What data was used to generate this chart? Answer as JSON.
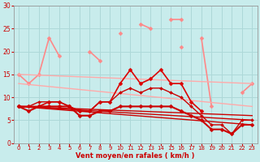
{
  "background_color": "#c8ecec",
  "grid_color": "#add8d8",
  "xlabel": "Vent moyen/en rafales ( km/h )",
  "xlabel_color": "#cc0000",
  "tick_color": "#cc0000",
  "xlim": [
    -0.5,
    23.5
  ],
  "ylim": [
    0,
    30
  ],
  "yticks": [
    0,
    5,
    10,
    15,
    20,
    25,
    30
  ],
  "xticks": [
    0,
    1,
    2,
    3,
    4,
    5,
    6,
    7,
    8,
    9,
    10,
    11,
    12,
    13,
    14,
    15,
    16,
    17,
    18,
    19,
    20,
    21,
    22,
    23
  ],
  "lines": [
    {
      "x": [
        0,
        1,
        2,
        3,
        4,
        5,
        6,
        7,
        8,
        9,
        10,
        11,
        12,
        13,
        14,
        15,
        16,
        17,
        18,
        19,
        20,
        21,
        22,
        23
      ],
      "y": [
        null,
        null,
        null,
        null,
        null,
        null,
        null,
        null,
        null,
        null,
        24,
        null,
        26,
        25,
        null,
        27,
        27,
        null,
        null,
        null,
        null,
        null,
        11,
        13
      ],
      "color": "#ff8888",
      "lw": 1.2,
      "marker": "D",
      "ms": 2.5
    },
    {
      "x": [
        0,
        1,
        2,
        3,
        4,
        5,
        6,
        7,
        8,
        9,
        10,
        11,
        12,
        13,
        14,
        15,
        16,
        17,
        18,
        19,
        20,
        21,
        22,
        23
      ],
      "y": [
        15,
        13,
        15,
        23,
        19,
        null,
        null,
        20,
        18,
        null,
        null,
        null,
        null,
        null,
        null,
        null,
        21,
        null,
        23,
        8,
        null,
        null,
        null,
        null
      ],
      "color": "#ff8888",
      "lw": 1.2,
      "marker": "D",
      "ms": 2.5
    },
    {
      "x": [
        0,
        23
      ],
      "y": [
        15,
        13
      ],
      "color": "#ffaaaa",
      "lw": 1.0,
      "marker": "none",
      "ms": 0
    },
    {
      "x": [
        0,
        23
      ],
      "y": [
        13,
        8
      ],
      "color": "#ffaaaa",
      "lw": 1.0,
      "marker": "none",
      "ms": 0
    },
    {
      "x": [
        0,
        1,
        2,
        3,
        4,
        5,
        6,
        7,
        8,
        9,
        10,
        11,
        12,
        13,
        14,
        15,
        16,
        17,
        18,
        19,
        20,
        21,
        22,
        23
      ],
      "y": [
        8,
        8,
        8,
        9,
        9,
        8,
        7,
        7,
        9,
        9,
        13,
        16,
        13,
        14,
        16,
        13,
        13,
        9,
        7,
        null,
        null,
        null,
        null,
        null
      ],
      "color": "#dd0000",
      "lw": 1.2,
      "marker": "D",
      "ms": 2.5
    },
    {
      "x": [
        0,
        23
      ],
      "y": [
        8,
        4
      ],
      "color": "#cc0000",
      "lw": 1.0,
      "marker": "none",
      "ms": 0
    },
    {
      "x": [
        0,
        23
      ],
      "y": [
        8,
        5
      ],
      "color": "#cc0000",
      "lw": 1.0,
      "marker": "none",
      "ms": 0
    },
    {
      "x": [
        0,
        23
      ],
      "y": [
        8,
        6
      ],
      "color": "#cc0000",
      "lw": 1.0,
      "marker": "none",
      "ms": 0
    },
    {
      "x": [
        0,
        1,
        2,
        3,
        4,
        5,
        6,
        7,
        8,
        9,
        10,
        11,
        12,
        13,
        14,
        15,
        16,
        17,
        18,
        19,
        20,
        21,
        22,
        23
      ],
      "y": [
        8,
        7,
        8,
        8,
        8,
        8,
        6,
        6,
        7,
        7,
        8,
        8,
        8,
        8,
        8,
        8,
        7,
        6,
        5,
        3,
        3,
        2,
        4,
        4
      ],
      "color": "#cc0000",
      "lw": 1.5,
      "marker": "D",
      "ms": 2.5
    },
    {
      "x": [
        0,
        1,
        2,
        3,
        4,
        5,
        6,
        7,
        8,
        9,
        10,
        11,
        12,
        13,
        14,
        15,
        16,
        17,
        18,
        19,
        20,
        21,
        22,
        23
      ],
      "y": [
        8,
        8,
        9,
        9,
        9,
        8,
        7,
        7,
        9,
        9,
        11,
        12,
        11,
        12,
        12,
        11,
        10,
        8,
        6,
        4,
        4,
        2,
        5,
        5
      ],
      "color": "#cc0000",
      "lw": 1.0,
      "marker": "D",
      "ms": 2.0
    }
  ]
}
